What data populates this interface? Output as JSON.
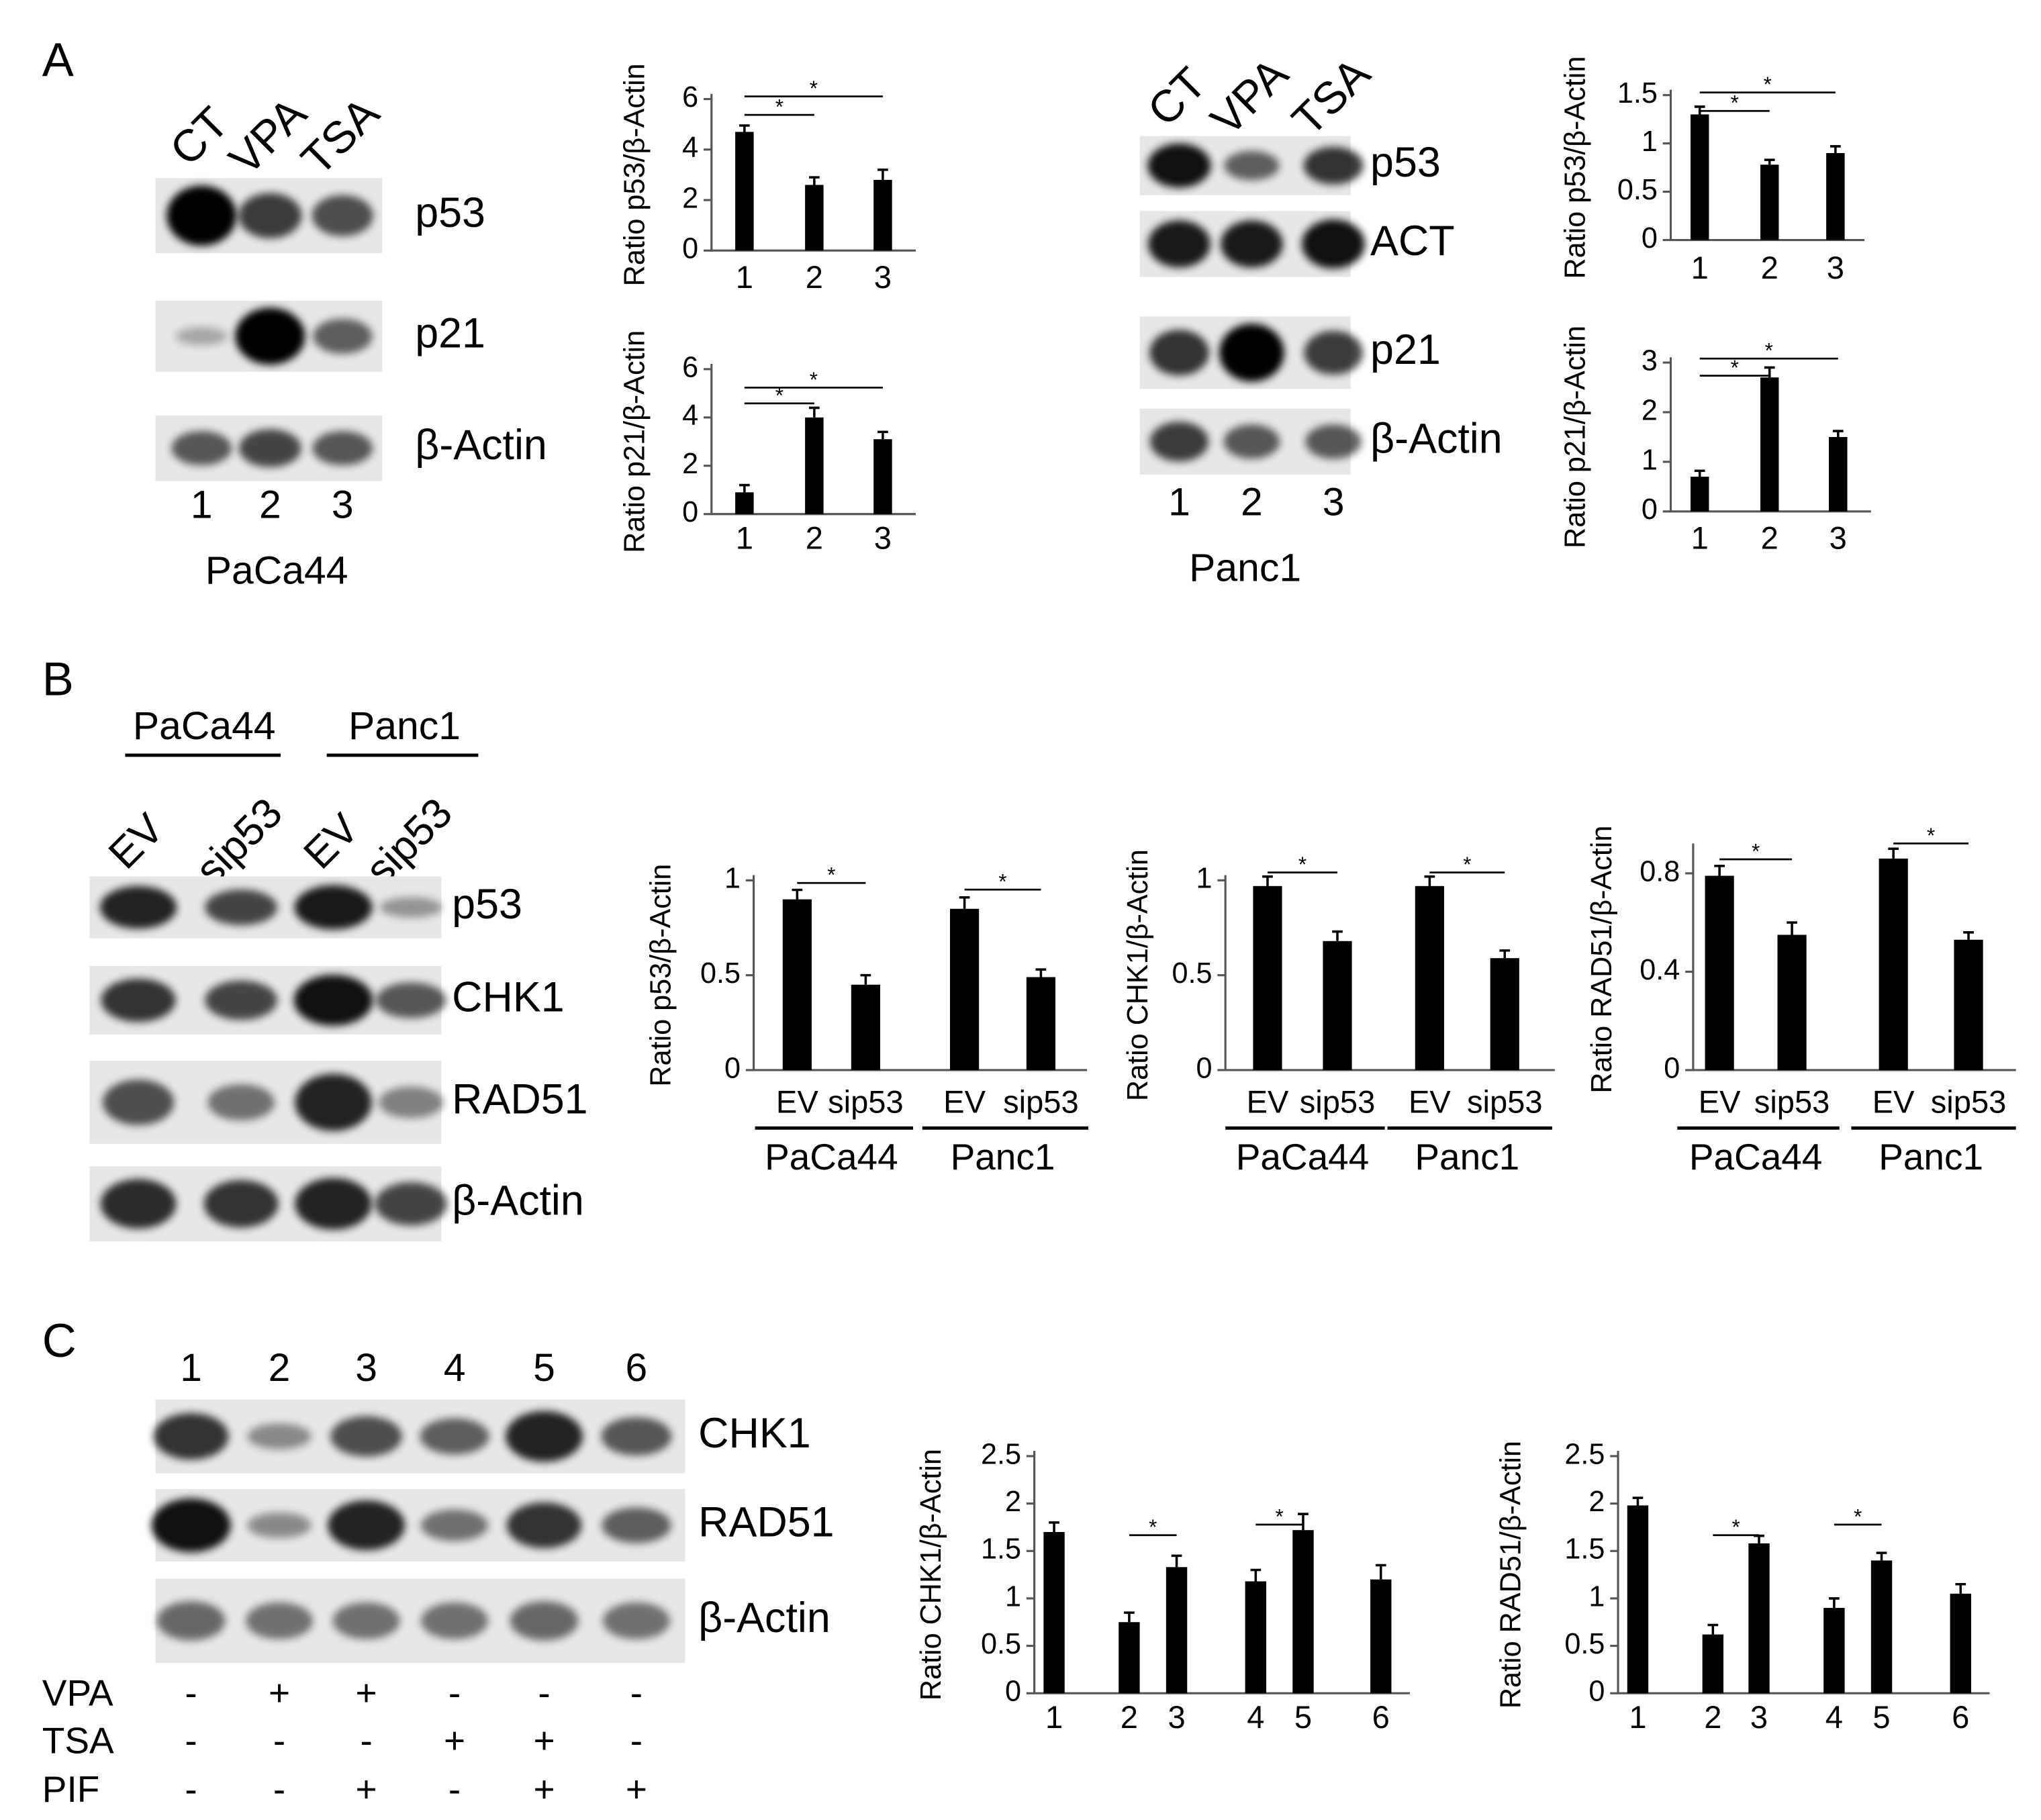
{
  "panel_labels": [
    "A",
    "B",
    "C"
  ],
  "blots": [
    {
      "lanes": [
        "CT",
        "VPA",
        "TSA"
      ],
      "rows": [
        "p53",
        "p21",
        "β-Actin"
      ],
      "lane_numbers": [
        "1",
        "2",
        "3"
      ],
      "cell_line": "PaCa44"
    },
    {
      "lanes": [
        "CT",
        "VPA",
        "TSA"
      ],
      "rows": [
        "p53",
        "ACT",
        "p21",
        "β-Actin"
      ],
      "lane_numbers": [
        "1",
        "2",
        "3"
      ],
      "cell_line": "Panc1"
    },
    {
      "groups": [
        "PaCa44",
        "Panc1"
      ],
      "lanes": [
        "EV",
        "sip53",
        "EV",
        "sip53"
      ],
      "rows": [
        "p53",
        "CHK1",
        "RAD51",
        "β-Actin"
      ]
    },
    {
      "lane_numbers": [
        "1",
        "2",
        "3",
        "4",
        "5",
        "6"
      ],
      "rows": [
        "CHK1",
        "RAD51",
        "β-Actin"
      ],
      "treatments": [
        {
          "name": "VPA",
          "signs": [
            "-",
            "+",
            "+",
            "-",
            "-",
            "-"
          ]
        },
        {
          "name": "TSA",
          "signs": [
            "-",
            "-",
            "-",
            "+",
            "+",
            "-"
          ]
        },
        {
          "name": "PIF",
          "signs": [
            "-",
            "-",
            "+",
            "-",
            "+",
            "+"
          ]
        }
      ]
    }
  ],
  "chart_data": [
    {
      "type": "bar",
      "ylabel": "Ratio p53/β-Actin",
      "categories": [
        "1",
        "2",
        "3"
      ],
      "values": [
        4.7,
        2.6,
        2.8
      ],
      "errors": [
        0.25,
        0.3,
        0.4
      ],
      "color": "#000000",
      "ylim": [
        0,
        6
      ],
      "yticks": [
        0,
        2,
        4,
        6
      ],
      "significance": [
        {
          "label": "*",
          "pair": [
            0,
            1
          ]
        },
        {
          "label": "*",
          "pair": [
            0,
            2
          ]
        }
      ]
    },
    {
      "type": "bar",
      "ylabel": "Ratio p21/β-Actin",
      "categories": [
        "1",
        "2",
        "3"
      ],
      "values": [
        0.9,
        4.0,
        3.1
      ],
      "errors": [
        0.3,
        0.4,
        0.3
      ],
      "color": "#000000",
      "ylim": [
        0,
        6
      ],
      "yticks": [
        0,
        2,
        4,
        6
      ],
      "significance": [
        {
          "label": "*",
          "pair": [
            0,
            1
          ]
        },
        {
          "label": "*",
          "pair": [
            0,
            2
          ]
        }
      ]
    },
    {
      "type": "bar",
      "ylabel": "Ratio p53/β-Actin",
      "categories": [
        "1",
        "2",
        "3"
      ],
      "values": [
        1.3,
        0.78,
        0.9
      ],
      "errors": [
        0.08,
        0.05,
        0.07
      ],
      "color": "#000000",
      "ylim": [
        0,
        1.5
      ],
      "yticks": [
        0,
        0.5,
        1,
        1.5
      ],
      "significance": [
        {
          "label": "*",
          "pair": [
            0,
            1
          ]
        },
        {
          "label": "*",
          "pair": [
            0,
            2
          ]
        }
      ]
    },
    {
      "type": "bar",
      "ylabel": "Ratio p21/β-Actin",
      "categories": [
        "1",
        "2",
        "3"
      ],
      "values": [
        0.7,
        2.7,
        1.5
      ],
      "errors": [
        0.12,
        0.2,
        0.12
      ],
      "color": "#000000",
      "ylim": [
        0,
        3
      ],
      "yticks": [
        0,
        1,
        2,
        3
      ],
      "significance": [
        {
          "label": "*",
          "pair": [
            0,
            1
          ]
        },
        {
          "label": "*",
          "pair": [
            0,
            2
          ]
        }
      ]
    },
    {
      "type": "bar",
      "ylabel": "Ratio p53/β-Actin",
      "categories": [
        "EV",
        "sip53",
        "EV",
        "sip53"
      ],
      "groups": [
        "PaCa44",
        "Panc1"
      ],
      "values": [
        0.9,
        0.45,
        0.85,
        0.49
      ],
      "errors": [
        0.05,
        0.05,
        0.06,
        0.04
      ],
      "color": "#000000",
      "ylim": [
        0,
        1
      ],
      "yticks": [
        0,
        0.5,
        1
      ],
      "significance": [
        {
          "label": "*",
          "pair": [
            0,
            1
          ]
        },
        {
          "label": "*",
          "pair": [
            2,
            3
          ]
        }
      ]
    },
    {
      "type": "bar",
      "ylabel": "Ratio CHK1/β-Actin",
      "categories": [
        "EV",
        "sip53",
        "EV",
        "sip53"
      ],
      "groups": [
        "PaCa44",
        "Panc1"
      ],
      "values": [
        0.97,
        0.68,
        0.97,
        0.59
      ],
      "errors": [
        0.05,
        0.05,
        0.05,
        0.04
      ],
      "color": "#000000",
      "ylim": [
        0,
        1
      ],
      "yticks": [
        0,
        0.5,
        1
      ],
      "significance": [
        {
          "label": "*",
          "pair": [
            0,
            1
          ]
        },
        {
          "label": "*",
          "pair": [
            2,
            3
          ]
        }
      ]
    },
    {
      "type": "bar",
      "ylabel": "Ratio RAD51/β-Actin",
      "categories": [
        "EV",
        "sip53",
        "EV",
        "sip53"
      ],
      "groups": [
        "PaCa44",
        "Panc1"
      ],
      "values": [
        0.79,
        0.55,
        0.86,
        0.53
      ],
      "errors": [
        0.04,
        0.05,
        0.04,
        0.03
      ],
      "color": "#000000",
      "ylim": [
        0,
        0.9
      ],
      "yticks": [
        0,
        0.4,
        0.8
      ],
      "significance": [
        {
          "label": "*",
          "pair": [
            0,
            1
          ]
        },
        {
          "label": "*",
          "pair": [
            2,
            3
          ]
        }
      ]
    },
    {
      "type": "bar",
      "ylabel": "Ratio CHK1/β-Actin",
      "categories": [
        "1",
        "2",
        "3",
        "4",
        "5",
        "6"
      ],
      "values": [
        1.7,
        0.75,
        1.33,
        1.18,
        1.72,
        1.2
      ],
      "errors": [
        0.1,
        0.1,
        0.12,
        0.12,
        0.17,
        0.15
      ],
      "color": "#000000",
      "ylim": [
        0,
        2.5
      ],
      "yticks": [
        0,
        0.5,
        1,
        1.5,
        2,
        2.5
      ],
      "significance": [
        {
          "label": "*",
          "pair": [
            1,
            2
          ]
        },
        {
          "label": "*",
          "pair": [
            3,
            4
          ]
        }
      ]
    },
    {
      "type": "bar",
      "ylabel": "Ratio RAD51/β-Actin",
      "categories": [
        "1",
        "2",
        "3",
        "4",
        "5",
        "6"
      ],
      "values": [
        1.98,
        0.62,
        1.58,
        0.9,
        1.4,
        1.05
      ],
      "errors": [
        0.08,
        0.1,
        0.08,
        0.1,
        0.08,
        0.1
      ],
      "color": "#000000",
      "ylim": [
        0,
        2.5
      ],
      "yticks": [
        0,
        0.5,
        1,
        1.5,
        2,
        2.5
      ],
      "significance": [
        {
          "label": "*",
          "pair": [
            1,
            2
          ]
        },
        {
          "label": "*",
          "pair": [
            3,
            4
          ]
        }
      ]
    }
  ]
}
